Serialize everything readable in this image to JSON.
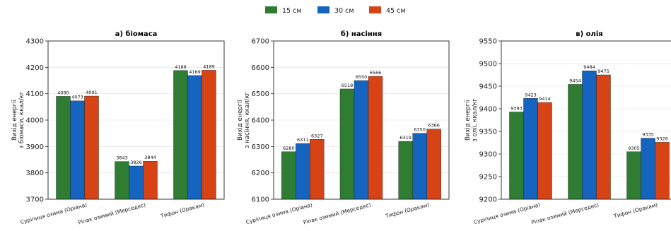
{
  "legend": [
    {
      "label": "15 см",
      "color": "#2e7d32"
    },
    {
      "label": "30 см",
      "color": "#1565c0"
    },
    {
      "label": "45 см",
      "color": "#d84315"
    }
  ],
  "chart_data": [
    {
      "type": "bar",
      "title": "а) біомаса",
      "ylabel": [
        "Вихід енергії",
        "з біомаси, ккал/кг"
      ],
      "categories": [
        "Суріпиця озима (Оріана)",
        "Ріпак озимий (Мерседес)",
        "Тифон (Оракам)"
      ],
      "ylim": [
        3700,
        4300
      ],
      "yticks": [
        3700,
        3800,
        3900,
        4000,
        4100,
        4200,
        4300
      ],
      "series": [
        {
          "name": "15 см",
          "values": [
            4090,
            3843,
            4188
          ]
        },
        {
          "name": "30 см",
          "values": [
            4073,
            3826,
            4169
          ]
        },
        {
          "name": "45 см",
          "values": [
            4091,
            3844,
            4189
          ]
        }
      ]
    },
    {
      "type": "bar",
      "title": "б) насіння",
      "ylabel": [
        "Вихід енергії",
        "з насіння, ккал/кг"
      ],
      "categories": [
        "Суріпиця озима (Оріана)",
        "Ріпак озимий (Мерседес)",
        "Тифон (Оракам)"
      ],
      "ylim": [
        6100,
        6700
      ],
      "yticks": [
        6100,
        6200,
        6300,
        6400,
        6500,
        6600,
        6700
      ],
      "series": [
        {
          "name": "15 см",
          "values": [
            6280,
            6518,
            6319
          ]
        },
        {
          "name": "30 см",
          "values": [
            6311,
            6550,
            6350
          ]
        },
        {
          "name": "45 см",
          "values": [
            6327,
            6566,
            6366
          ]
        }
      ]
    },
    {
      "type": "bar",
      "title": "в) олія",
      "ylabel": [
        "Вихід енергії",
        "з олії, ккал/кг"
      ],
      "categories": [
        "Суріпиця озима (Оріана)",
        "Ріпак озимий (Мерседес)",
        "Тифон (Оракам)"
      ],
      "ylim": [
        9200,
        9550
      ],
      "yticks": [
        9200,
        9250,
        9300,
        9350,
        9400,
        9450,
        9500,
        9550
      ],
      "series": [
        {
          "name": "15 см",
          "values": [
            9393,
            9454,
            9305
          ]
        },
        {
          "name": "30 см",
          "values": [
            9423,
            9484,
            9335
          ]
        },
        {
          "name": "45 см",
          "values": [
            9414,
            9475,
            9326
          ]
        }
      ]
    }
  ]
}
